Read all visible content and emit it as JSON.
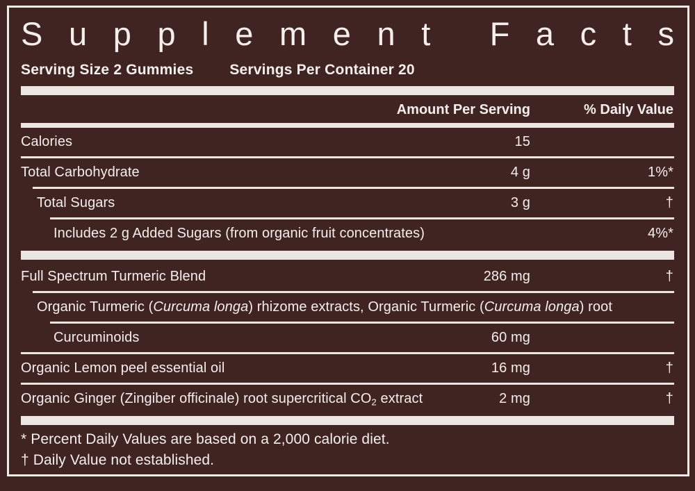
{
  "colors": {
    "background": "#3f2422",
    "text": "#f4efec",
    "rule": "#ece6e3"
  },
  "title": "Supplement Facts",
  "serving": {
    "serving_size": "Serving Size 2 Gummies",
    "servings_per_container": "Servings Per Container 20"
  },
  "columns": {
    "amount": "Amount Per Serving",
    "daily_value": "% Daily Value"
  },
  "table": {
    "rows": [
      {
        "sep": "none",
        "indent": 0,
        "parts": [
          {
            "t": "Calories"
          }
        ],
        "amount": "15",
        "daily": ""
      },
      {
        "sep": "thin",
        "sep_indent": 0,
        "indent": 0,
        "parts": [
          {
            "t": "Total Carbohydrate"
          }
        ],
        "amount": "4 g",
        "daily": "1%*"
      },
      {
        "sep": "thin",
        "sep_indent": 1,
        "indent": 1,
        "parts": [
          {
            "t": "Total Sugars"
          }
        ],
        "amount": "3 g",
        "daily": "†"
      },
      {
        "sep": "thin",
        "sep_indent": 2,
        "indent": 2,
        "parts": [
          {
            "t": "Includes 2 g Added Sugars (from organic fruit concentrates)"
          }
        ],
        "amount": "",
        "daily": "4%*"
      },
      {
        "sep": "thick",
        "indent": 0,
        "parts": [
          {
            "t": "Full Spectrum Turmeric Blend"
          }
        ],
        "amount": "286 mg",
        "daily": "†"
      },
      {
        "sep": "thin",
        "sep_indent": 1,
        "indent": 1,
        "full": true,
        "parts": [
          {
            "t": "Organic Turmeric ("
          },
          {
            "t": "Curcuma longa",
            "i": true
          },
          {
            "t": ") rhizome extracts, Organic Turmeric ("
          },
          {
            "t": "Curcuma longa",
            "i": true
          },
          {
            "t": ") root"
          }
        ],
        "amount": "",
        "daily": ""
      },
      {
        "sep": "thin",
        "sep_indent": 2,
        "indent": 2,
        "parts": [
          {
            "t": "Curcuminoids"
          }
        ],
        "amount": "60 mg",
        "daily": ""
      },
      {
        "sep": "thin",
        "sep_indent": 0,
        "indent": 0,
        "parts": [
          {
            "t": "Organic Lemon peel essential oil"
          }
        ],
        "amount": "16 mg",
        "daily": "†"
      },
      {
        "sep": "thin",
        "sep_indent": 0,
        "indent": 0,
        "parts": [
          {
            "t": "Organic Ginger (Zingiber officinale) root supercritical CO"
          },
          {
            "t": "2",
            "sub": true
          },
          {
            "t": " extract"
          }
        ],
        "amount": "2 mg",
        "daily": "†"
      }
    ]
  },
  "footnotes": [
    "* Percent Daily Values are based on a 2,000 calorie diet.",
    "† Daily Value not established."
  ]
}
